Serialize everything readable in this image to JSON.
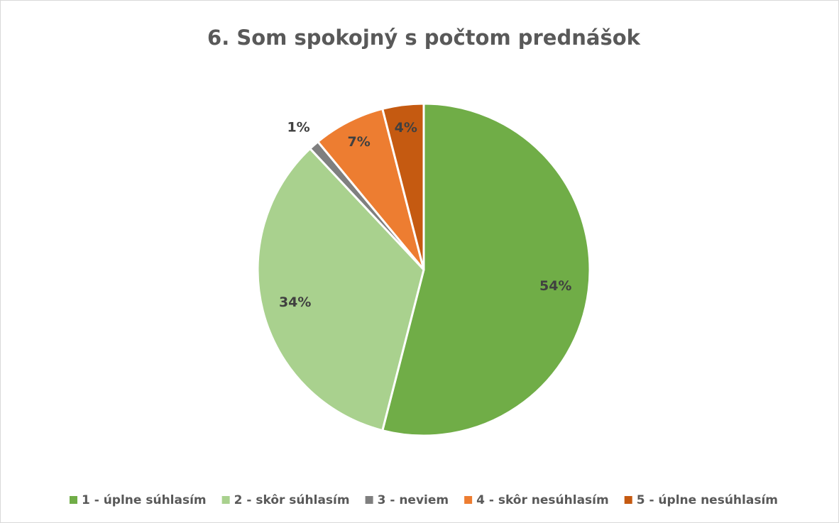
{
  "chart_data": {
    "type": "pie",
    "title": "6. Som spokojný s počtom prednášok",
    "categories": [
      "1 - úplne súhlasím",
      "2 - skôr súhlasím",
      "3 - neviem",
      "4 - skôr nesúhlasím",
      "5 - úplne nesúhlasím"
    ],
    "values": [
      54,
      34,
      1,
      7,
      4
    ],
    "value_labels": [
      "54%",
      "34%",
      "1%",
      "7%",
      "4%"
    ],
    "colors": [
      "#70ad47",
      "#a9d18e",
      "#7f7f7f",
      "#ed7d31",
      "#c55a11"
    ],
    "legend": "bottom"
  }
}
